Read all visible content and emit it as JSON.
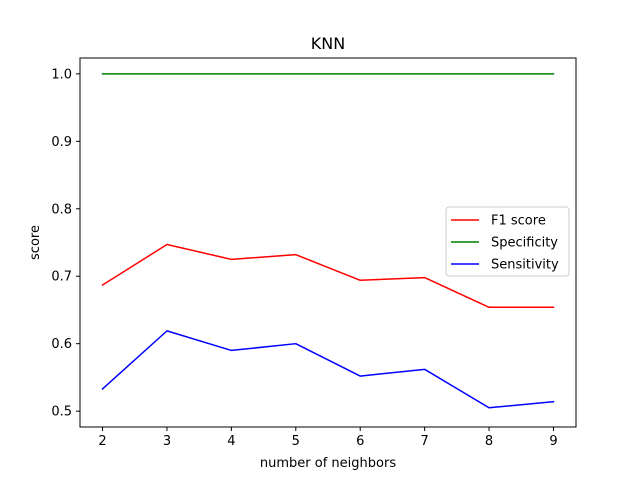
{
  "chart_data": {
    "type": "line",
    "title": "KNN",
    "xlabel": "number of neighbors",
    "ylabel": "score",
    "x": [
      2,
      3,
      4,
      5,
      6,
      7,
      8,
      9
    ],
    "xlim": [
      1.65,
      9.35
    ],
    "ylim": [
      0.4765,
      1.0235
    ],
    "xticks": [
      2,
      3,
      4,
      5,
      6,
      7,
      8,
      9
    ],
    "yticks": [
      0.5,
      0.6,
      0.7,
      0.8,
      0.9,
      1.0
    ],
    "ytick_labels": [
      "0.5",
      "0.6",
      "0.7",
      "0.8",
      "0.9",
      "1.0"
    ],
    "grid": false,
    "legend_position": "center-right",
    "series": [
      {
        "name": "F1 score",
        "color": "#ff0000",
        "values": [
          0.687,
          0.747,
          0.725,
          0.732,
          0.694,
          0.698,
          0.654,
          0.654
        ]
      },
      {
        "name": "Specificity",
        "color": "#008000",
        "values": [
          1.0,
          1.0,
          1.0,
          1.0,
          1.0,
          1.0,
          1.0,
          1.0
        ]
      },
      {
        "name": "Sensitivity",
        "color": "#0000ff",
        "values": [
          0.533,
          0.619,
          0.59,
          0.6,
          0.552,
          0.562,
          0.505,
          0.514
        ]
      }
    ]
  }
}
